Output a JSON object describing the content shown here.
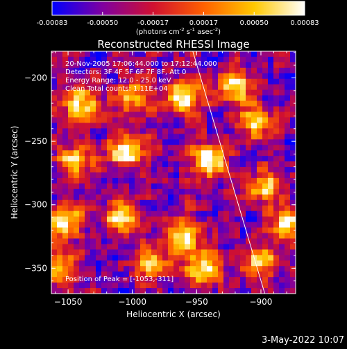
{
  "colorbar": {
    "ticks": [
      "-0.00083",
      "-0.00050",
      "-0.00017",
      "0.00017",
      "0.00050",
      "0.00083"
    ],
    "units_main": "(photons cm",
    "units_exp1": "-2",
    "units_mid": " s",
    "units_exp2": "-1",
    "units_tail": " asec",
    "units_exp3": "-2",
    "units_close": ")"
  },
  "plot": {
    "title": "Reconstructed RHESSI Image",
    "annotations": [
      "20-Nov-2005 17:06:44.000 to 17:12:44.000",
      "Detectors: 3F 4F 5F 6F 7F 8F, Att 0",
      "Energy Range: 12.0 - 25.0 keV",
      "Clean     Total counts: 1.11E+04"
    ],
    "peak_label": "Position of Peak = [-1053,-311]"
  },
  "footer": {
    "date": "3-May-2022 10:07"
  },
  "chart_data": {
    "type": "heatmap",
    "title": "Reconstructed RHESSI Image",
    "xlabel": "Heliocentric X (arcsec)",
    "ylabel": "Heliocentric Y (arcsec)",
    "xlim": [
      -1063,
      -873
    ],
    "ylim": [
      -370,
      -179
    ],
    "xticks": [
      -1050,
      -1000,
      -950,
      -900
    ],
    "yticks": [
      -200,
      -250,
      -300,
      -350
    ],
    "color_range": [
      -0.00083,
      0.00083
    ],
    "colormap": [
      "#0000ff",
      "#8000a0",
      "#d01030",
      "#ff6000",
      "#ffc800",
      "#ffffff"
    ],
    "limb_line": {
      "x": [
        -953,
        -897
      ],
      "y": [
        -179,
        -370
      ]
    },
    "peak": {
      "x": -1053,
      "y": -311
    },
    "sources": [
      {
        "x": -960,
        "y": -215,
        "value": 0.0008
      },
      {
        "x": -920,
        "y": -205,
        "value": 0.0007
      },
      {
        "x": -940,
        "y": -265,
        "value": 0.0008
      },
      {
        "x": -1005,
        "y": -258,
        "value": 0.0008
      },
      {
        "x": -1053,
        "y": -311,
        "value": 0.0008
      },
      {
        "x": -1010,
        "y": -310,
        "value": 0.0006
      },
      {
        "x": -960,
        "y": -325,
        "value": 0.0006
      },
      {
        "x": -945,
        "y": -350,
        "value": 0.0007
      },
      {
        "x": -900,
        "y": -345,
        "value": 0.0006
      },
      {
        "x": -880,
        "y": -315,
        "value": 0.0006
      },
      {
        "x": -895,
        "y": -285,
        "value": 0.0005
      },
      {
        "x": -1045,
        "y": -265,
        "value": 0.0005
      },
      {
        "x": -1040,
        "y": -220,
        "value": 0.0005
      },
      {
        "x": -1000,
        "y": -215,
        "value": 0.0004
      },
      {
        "x": -905,
        "y": -235,
        "value": 0.0005
      },
      {
        "x": -985,
        "y": -345,
        "value": 0.0004
      },
      {
        "x": -1055,
        "y": -350,
        "value": 0.0004
      }
    ]
  }
}
